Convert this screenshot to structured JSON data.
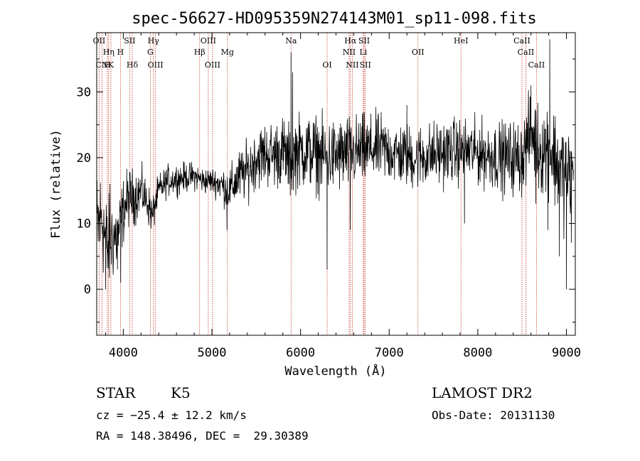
{
  "chart_data": {
    "type": "line",
    "title": "spec-56627-HD095359N274143M01_sp11-098.fits",
    "xlabel": "Wavelength (Å)",
    "ylabel": "Flux (relative)",
    "xlim": [
      3700,
      9100
    ],
    "ylim": [
      -7,
      39
    ],
    "x_ticks": [
      4000,
      5000,
      6000,
      7000,
      8000,
      9000
    ],
    "y_ticks": [
      0,
      10,
      20,
      30
    ],
    "grid": false,
    "line_color": "#000000",
    "marker_color": "#c0392b",
    "continuum": [
      [
        3700,
        9
      ],
      [
        3760,
        11
      ],
      [
        3820,
        6
      ],
      [
        3880,
        8
      ],
      [
        3940,
        8
      ],
      [
        4000,
        12
      ],
      [
        4060,
        14
      ],
      [
        4120,
        14
      ],
      [
        4200,
        15
      ],
      [
        4280,
        13
      ],
      [
        4330,
        11
      ],
      [
        4360,
        13
      ],
      [
        4400,
        15
      ],
      [
        4500,
        16.5
      ],
      [
        4600,
        16.8
      ],
      [
        4700,
        17
      ],
      [
        4800,
        17.2
      ],
      [
        4900,
        16.5
      ],
      [
        5000,
        16.5
      ],
      [
        5100,
        16
      ],
      [
        5150,
        15.5
      ],
      [
        5200,
        15
      ],
      [
        5300,
        17
      ],
      [
        5400,
        18
      ],
      [
        5500,
        20
      ],
      [
        5600,
        20.5
      ],
      [
        5700,
        20.5
      ],
      [
        5800,
        21
      ],
      [
        5893,
        19
      ],
      [
        5950,
        21
      ],
      [
        6100,
        21
      ],
      [
        6300,
        20
      ],
      [
        6500,
        20.5
      ],
      [
        6700,
        21
      ],
      [
        6900,
        21.5
      ],
      [
        7100,
        20.5
      ],
      [
        7300,
        20
      ],
      [
        7500,
        20.5
      ],
      [
        7700,
        21
      ],
      [
        7900,
        21
      ],
      [
        8100,
        20.5
      ],
      [
        8300,
        20
      ],
      [
        8500,
        20
      ],
      [
        8600,
        24
      ],
      [
        8700,
        21
      ],
      [
        8800,
        22
      ],
      [
        8900,
        19
      ],
      [
        9000,
        17
      ],
      [
        9100,
        16
      ]
    ],
    "noise": [
      [
        3700,
        5.5
      ],
      [
        3900,
        4
      ],
      [
        4000,
        3
      ],
      [
        4400,
        1.5
      ],
      [
        5000,
        1.2
      ],
      [
        5300,
        2.5
      ],
      [
        5600,
        3
      ],
      [
        6000,
        3.5
      ],
      [
        6500,
        3.5
      ],
      [
        7000,
        3
      ],
      [
        7500,
        3
      ],
      [
        8000,
        3
      ],
      [
        8500,
        3.5
      ],
      [
        9000,
        5
      ],
      [
        9100,
        6
      ]
    ],
    "features": [
      {
        "x": 5893,
        "value": 36
      },
      {
        "x": 5910,
        "value": 33
      },
      {
        "x": 6300,
        "value": 3
      },
      {
        "x": 6560,
        "value": 9
      },
      {
        "x": 3800,
        "value": 0
      },
      {
        "x": 3850,
        "value": 16
      },
      {
        "x": 3934,
        "value": 3
      },
      {
        "x": 3970,
        "value": 1
      },
      {
        "x": 5170,
        "value": 9
      },
      {
        "x": 8790,
        "value": 9
      },
      {
        "x": 8812,
        "value": 38
      },
      {
        "x": 8600,
        "value": 31
      },
      {
        "x": 8655,
        "value": 13
      },
      {
        "x": 7200,
        "value": 28
      },
      {
        "x": 7850,
        "value": 10
      },
      {
        "x": 8920,
        "value": 5
      },
      {
        "x": 9000,
        "value": 0
      },
      {
        "x": 9050,
        "value": 16
      }
    ],
    "lines": [
      {
        "label": "OII",
        "x": 3727,
        "row": 0
      },
      {
        "label": "Hη",
        "x": 3835,
        "row": 1
      },
      {
        "label": "CN",
        "x": 3760,
        "row": 2
      },
      {
        "label": "H",
        "x": 3820,
        "row": 2
      },
      {
        "label": "K",
        "x": 3860,
        "row": 2
      },
      {
        "label": "H",
        "x": 3968,
        "row": 1
      },
      {
        "label": "SII",
        "x": 4072,
        "row": 0
      },
      {
        "label": "Hδ",
        "x": 4101,
        "row": 2
      },
      {
        "label": "Hγ",
        "x": 4340,
        "row": 0
      },
      {
        "label": "G",
        "x": 4305,
        "row": 1
      },
      {
        "label": "OIII",
        "x": 4363,
        "row": 2
      },
      {
        "label": "OIII",
        "x": 4959,
        "row": 0
      },
      {
        "label": "Hβ",
        "x": 4861,
        "row": 1
      },
      {
        "label": "OIII",
        "x": 5007,
        "row": 2
      },
      {
        "label": "Mg",
        "x": 5175,
        "row": 1
      },
      {
        "label": "Na",
        "x": 5893,
        "row": 0
      },
      {
        "label": "OI",
        "x": 6300,
        "row": 2
      },
      {
        "label": "Hα",
        "x": 6563,
        "row": 0
      },
      {
        "label": "NII",
        "x": 6548,
        "row": 1
      },
      {
        "label": "NII",
        "x": 6584,
        "row": 2
      },
      {
        "label": "SII",
        "x": 6717,
        "row": 0
      },
      {
        "label": "Li",
        "x": 6708,
        "row": 1
      },
      {
        "label": "SII",
        "x": 6731,
        "row": 2
      },
      {
        "label": "OII",
        "x": 7325,
        "row": 1
      },
      {
        "label": "HeI",
        "x": 7810,
        "row": 0
      },
      {
        "label": "CaII",
        "x": 8498,
        "row": 0
      },
      {
        "label": "CaII",
        "x": 8542,
        "row": 1
      },
      {
        "label": "CaII",
        "x": 8662,
        "row": 2
      }
    ]
  },
  "info": {
    "class": "STAR",
    "subclass": "K5",
    "survey": "LAMOST DR2",
    "cz": "cz = −25.4 ± 12.2 km/s",
    "obs_date": "Obs-Date: 20131130",
    "coords": "RA = 148.38496, DEC =  29.30389"
  }
}
